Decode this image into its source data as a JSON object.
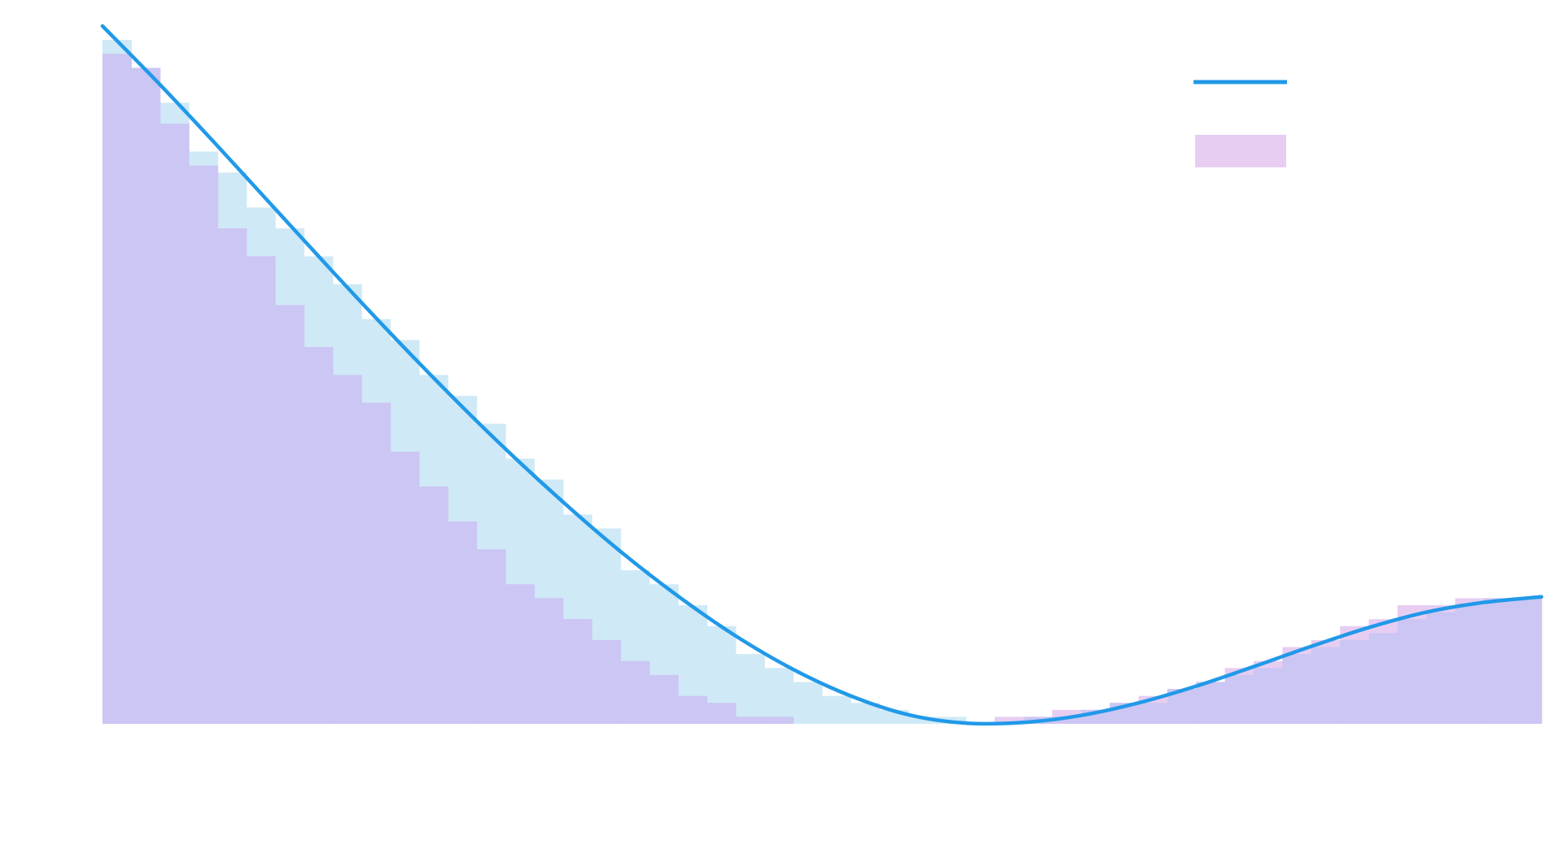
{
  "chart_data": {
    "type": "area",
    "title": "",
    "xlabel": "",
    "ylabel": "",
    "xlim": [
      0,
      50
    ],
    "ylim": [
      0,
      1
    ],
    "grid": false,
    "legend_placement": "top-right",
    "colors": {
      "line": "#2199e8",
      "hist_a": "#cfe9f7",
      "hist_b": "#e7cdf2",
      "overlap": "#cbc6f3"
    },
    "series": [
      {
        "kind": "line",
        "x": [
          0,
          2,
          4,
          6,
          8,
          10,
          12,
          14,
          16,
          18,
          20,
          22,
          24,
          26,
          28,
          30,
          32,
          34,
          36,
          38,
          40,
          42,
          44,
          46,
          48,
          50
        ],
        "values": [
          1.0,
          0.916,
          0.828,
          0.738,
          0.648,
          0.56,
          0.475,
          0.394,
          0.318,
          0.247,
          0.183,
          0.126,
          0.078,
          0.04,
          0.013,
          0.001,
          0.002,
          0.012,
          0.03,
          0.054,
          0.082,
          0.111,
          0.138,
          0.16,
          0.174,
          0.182
        ]
      },
      {
        "kind": "histogram",
        "x": [
          0,
          1,
          2,
          3,
          4,
          5,
          6,
          7,
          8,
          9,
          10,
          11,
          12,
          13,
          14,
          15,
          16,
          17,
          18,
          19,
          20,
          21,
          22,
          23,
          24,
          25,
          26,
          27,
          28,
          29,
          30,
          31,
          32,
          33,
          34,
          35,
          36,
          37,
          38,
          39,
          40,
          41,
          42,
          43,
          44,
          45,
          46,
          47,
          48,
          49
        ],
        "values": [
          0.98,
          0.94,
          0.89,
          0.82,
          0.79,
          0.74,
          0.71,
          0.67,
          0.63,
          0.58,
          0.55,
          0.5,
          0.47,
          0.43,
          0.38,
          0.35,
          0.3,
          0.28,
          0.22,
          0.2,
          0.17,
          0.14,
          0.1,
          0.08,
          0.06,
          0.04,
          0.03,
          0.02,
          0.01,
          0.01,
          0.0,
          0.0,
          0.01,
          0.01,
          0.02,
          0.03,
          0.03,
          0.05,
          0.06,
          0.07,
          0.08,
          0.1,
          0.11,
          0.12,
          0.13,
          0.15,
          0.16,
          0.17,
          0.18,
          0.18
        ]
      },
      {
        "kind": "histogram",
        "x": [
          0,
          1,
          2,
          3,
          4,
          5,
          6,
          7,
          8,
          9,
          10,
          11,
          12,
          13,
          14,
          15,
          16,
          17,
          18,
          19,
          20,
          21,
          22,
          23,
          24,
          25,
          26,
          27,
          28,
          29,
          30,
          31,
          32,
          33,
          34,
          35,
          36,
          37,
          38,
          39,
          40,
          41,
          42,
          43,
          44,
          45,
          46,
          47,
          48,
          49
        ],
        "values": [
          0.96,
          0.94,
          0.86,
          0.8,
          0.71,
          0.67,
          0.6,
          0.54,
          0.5,
          0.46,
          0.39,
          0.34,
          0.29,
          0.25,
          0.2,
          0.18,
          0.15,
          0.12,
          0.09,
          0.07,
          0.04,
          0.03,
          0.01,
          0.01,
          0.0,
          0.0,
          0.0,
          0.0,
          0.0,
          0.0,
          0.0,
          0.01,
          0.01,
          0.02,
          0.02,
          0.03,
          0.04,
          0.05,
          0.06,
          0.08,
          0.09,
          0.11,
          0.12,
          0.14,
          0.15,
          0.17,
          0.17,
          0.18,
          0.18,
          0.18
        ]
      }
    ]
  }
}
